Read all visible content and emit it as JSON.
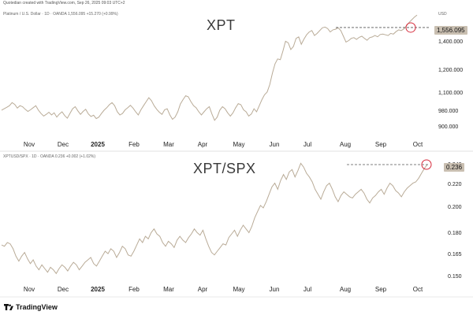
{
  "credit": "Quotedian created with TradingView.com, Sep 26, 2025 09:03 UTC+2",
  "footer_logo_text": "TradingView",
  "colors": {
    "series": "#b9ab97",
    "marker": "#d62b3c",
    "dashed": "#555555",
    "tag_bg": "#c9bfb1"
  },
  "chart_data": [
    {
      "type": "line",
      "legend": "Platinum / U.S. Dollar · 1D · OANDA  1,556.095  +15.270 (+0.99%)",
      "title": "XPT",
      "currency": "USD",
      "last_value": "1,556.095",
      "x_ticks": [
        "Nov",
        "Dec",
        "2025",
        "Feb",
        "Mar",
        "Apr",
        "May",
        "Jun",
        "Jul",
        "Aug",
        "Sep",
        "Oct"
      ],
      "y_ticks": [
        "1,400.000",
        "1,200.000",
        "1,100.000",
        "980.000",
        "900.000"
      ],
      "ylim": [
        860,
        1600
      ],
      "values": [
        968,
        975,
        982,
        990,
        1005,
        996,
        978,
        990,
        985,
        972,
        962,
        970,
        980,
        990,
        968,
        952,
        940,
        948,
        958,
        945,
        955,
        935,
        950,
        960,
        942,
        930,
        952,
        975,
        985,
        965,
        948,
        962,
        972,
        950,
        938,
        944,
        928,
        935,
        952,
        968,
        980,
        995,
        1005,
        990,
        960,
        945,
        952,
        970,
        980,
        992,
        978,
        960,
        945,
        970,
        990,
        1010,
        1030,
        1015,
        990,
        972,
        958,
        948,
        970,
        975,
        945,
        925,
        935,
        960,
        998,
        1020,
        1040,
        1035,
        1010,
        990,
        980,
        960,
        945,
        960,
        975,
        985,
        950,
        920,
        935,
        968,
        985,
        975,
        955,
        940,
        955,
        980,
        1000,
        995,
        970,
        960,
        940,
        950,
        975,
        960,
        990,
        1020,
        1045,
        1060,
        1100,
        1165,
        1220,
        1250,
        1245,
        1300,
        1365,
        1355,
        1310,
        1330,
        1385,
        1395,
        1345,
        1380,
        1410,
        1430,
        1440,
        1405,
        1420,
        1440,
        1460,
        1465,
        1455,
        1430,
        1445,
        1450,
        1460,
        1440,
        1400,
        1360,
        1370,
        1385,
        1390,
        1378,
        1392,
        1400,
        1385,
        1372,
        1390,
        1395,
        1405,
        1396,
        1412,
        1415,
        1410,
        1405,
        1420,
        1415,
        1432,
        1445,
        1440,
        1452,
        1475,
        1500,
        1520,
        1540,
        1556
      ],
      "reference_level": 1462
    },
    {
      "type": "line",
      "legend": "XPTUSD/SPX · 1D · OANDA  0.236  +0.002 (+1.02%)",
      "title": "XPT/SPX",
      "last_value": "0.236",
      "x_ticks": [
        "Nov",
        "Dec",
        "2025",
        "Feb",
        "Mar",
        "Apr",
        "May",
        "Jun",
        "Jul",
        "Aug",
        "Sep",
        "Oct"
      ],
      "y_ticks": [
        "0.240",
        "0.220",
        "0.200",
        "0.180",
        "0.165",
        "0.150"
      ],
      "ylim": [
        0.145,
        0.243
      ],
      "values": [
        0.171,
        0.17,
        0.173,
        0.172,
        0.168,
        0.162,
        0.158,
        0.162,
        0.165,
        0.16,
        0.156,
        0.159,
        0.154,
        0.151,
        0.155,
        0.152,
        0.149,
        0.153,
        0.151,
        0.148,
        0.152,
        0.155,
        0.153,
        0.15,
        0.154,
        0.157,
        0.155,
        0.151,
        0.154,
        0.157,
        0.159,
        0.161,
        0.156,
        0.154,
        0.158,
        0.162,
        0.166,
        0.164,
        0.168,
        0.166,
        0.161,
        0.165,
        0.17,
        0.168,
        0.163,
        0.162,
        0.166,
        0.171,
        0.176,
        0.173,
        0.178,
        0.176,
        0.181,
        0.184,
        0.18,
        0.178,
        0.173,
        0.17,
        0.174,
        0.172,
        0.169,
        0.175,
        0.178,
        0.175,
        0.173,
        0.177,
        0.18,
        0.184,
        0.181,
        0.179,
        0.183,
        0.176,
        0.17,
        0.165,
        0.163,
        0.166,
        0.169,
        0.172,
        0.171,
        0.177,
        0.18,
        0.183,
        0.178,
        0.183,
        0.187,
        0.184,
        0.181,
        0.186,
        0.193,
        0.198,
        0.203,
        0.201,
        0.206,
        0.212,
        0.218,
        0.221,
        0.216,
        0.223,
        0.228,
        0.224,
        0.23,
        0.232,
        0.226,
        0.231,
        0.237,
        0.234,
        0.229,
        0.226,
        0.222,
        0.216,
        0.212,
        0.208,
        0.214,
        0.219,
        0.221,
        0.216,
        0.21,
        0.206,
        0.211,
        0.214,
        0.212,
        0.21,
        0.209,
        0.212,
        0.214,
        0.216,
        0.213,
        0.208,
        0.205,
        0.209,
        0.211,
        0.214,
        0.216,
        0.212,
        0.217,
        0.221,
        0.219,
        0.215,
        0.213,
        0.21,
        0.214,
        0.217,
        0.219,
        0.221,
        0.222,
        0.225,
        0.229,
        0.233,
        0.236
      ],
      "reference_level": 0.236
    }
  ]
}
